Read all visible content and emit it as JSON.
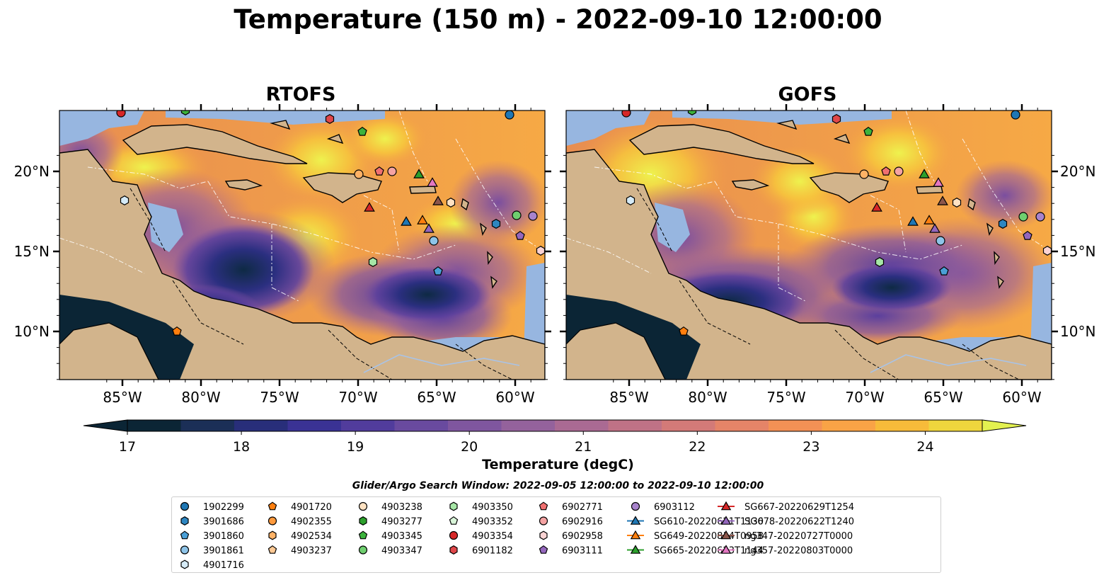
{
  "title": "Temperature (150 m) - 2022-09-10 12:00:00",
  "panels": [
    {
      "title": "RTOFS",
      "pattern": "rtofs"
    },
    {
      "title": "GOFS",
      "pattern": "gofs"
    }
  ],
  "lon_ticks": [
    "85°W",
    "80°W",
    "75°W",
    "70°W",
    "65°W",
    "60°W"
  ],
  "lat_ticks": [
    "20°N",
    "15°N",
    "10°N"
  ],
  "colorbar": {
    "label": "Temperature (degC)",
    "ticks": [
      "17",
      "18",
      "19",
      "20",
      "21",
      "22",
      "23",
      "24"
    ],
    "colors": [
      "#0b2535",
      "#1b2f57",
      "#282e7a",
      "#3a3294",
      "#513c9c",
      "#694a9f",
      "#7f569f",
      "#94629c",
      "#aa6a93",
      "#bf7286",
      "#d37a78",
      "#e58468",
      "#f39155",
      "#f9a346",
      "#f7bb3a",
      "#efd63d",
      "#e3f150"
    ]
  },
  "search_window": "Glider/Argo Search Window: 2022-09-05 12:00:00 to 2022-09-10 12:00:00",
  "legend": [
    {
      "label": "1902299",
      "shape": "circle",
      "color": "#1f77b4"
    },
    {
      "label": "3901686",
      "shape": "hexagon",
      "color": "#2e86c1"
    },
    {
      "label": "3901860",
      "shape": "pentagon",
      "color": "#4a9fd6"
    },
    {
      "label": "3901861",
      "shape": "circle",
      "color": "#8ec4e8"
    },
    {
      "label": "4901716",
      "shape": "hexagon",
      "color": "#d6ebf7"
    },
    {
      "label": "4901720",
      "shape": "pentagon",
      "color": "#ff7f0e"
    },
    {
      "label": "4902355",
      "shape": "circle",
      "color": "#ff9a3d"
    },
    {
      "label": "4902534",
      "shape": "hexagon",
      "color": "#ffb266"
    },
    {
      "label": "4903237",
      "shape": "pentagon",
      "color": "#ffc994"
    },
    {
      "label": "4903238",
      "shape": "circle",
      "color": "#ffe2c2"
    },
    {
      "label": "4903277",
      "shape": "hexagon",
      "color": "#2ca02c"
    },
    {
      "label": "4903345",
      "shape": "pentagon",
      "color": "#3cb33c"
    },
    {
      "label": "4903347",
      "shape": "circle",
      "color": "#6fcf6f"
    },
    {
      "label": "4903350",
      "shape": "hexagon",
      "color": "#a6e6a6"
    },
    {
      "label": "4903352",
      "shape": "pentagon",
      "color": "#d9f5d9"
    },
    {
      "label": "4903354",
      "shape": "circle",
      "color": "#d62728"
    },
    {
      "label": "6901182",
      "shape": "hexagon",
      "color": "#e0474a"
    },
    {
      "label": "6902771",
      "shape": "pentagon",
      "color": "#f07070"
    },
    {
      "label": "6902916",
      "shape": "circle",
      "color": "#f5a3a3"
    },
    {
      "label": "6902958",
      "shape": "hexagon",
      "color": "#fbd3d3"
    },
    {
      "label": "6903111",
      "shape": "pentagon",
      "color": "#9467bd"
    },
    {
      "label": "6903112",
      "shape": "circle",
      "color": "#a883cc"
    },
    {
      "label": "SG610-20220621T1130",
      "shape": "triangle-line",
      "color": "#1f77b4"
    },
    {
      "label": "SG649-20220814T0958",
      "shape": "triangle-line",
      "color": "#ff7f0e"
    },
    {
      "label": "SG665-20220623T1144",
      "shape": "triangle-line",
      "color": "#2ca02c"
    },
    {
      "label": "SG667-20220629T1254",
      "shape": "triangle-line",
      "color": "#d62728"
    },
    {
      "label": "SG678-20220622T1240",
      "shape": "triangle-line",
      "color": "#9467bd"
    },
    {
      "label": "ng347-20220727T0000",
      "shape": "triangle-line",
      "color": "#8c564b"
    },
    {
      "label": "ng357-20220803T0000",
      "shape": "triangle-line",
      "color": "#e377c2"
    }
  ]
}
